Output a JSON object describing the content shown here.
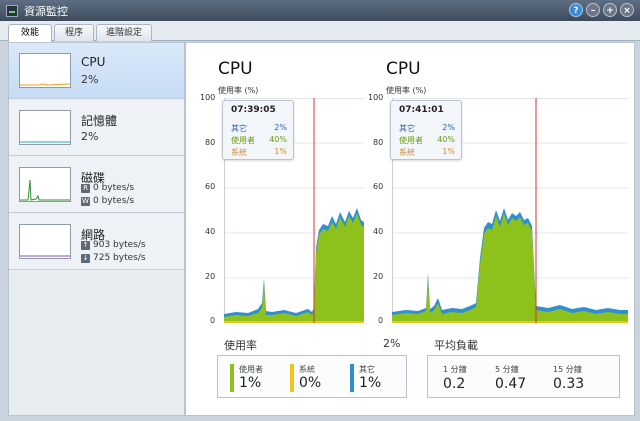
{
  "window": {
    "title": "資源監控"
  },
  "tabs": [
    {
      "label": "效能",
      "active": true
    },
    {
      "label": "程序",
      "active": false
    },
    {
      "label": "進階設定",
      "active": false
    }
  ],
  "sidebar": {
    "items": [
      {
        "title": "CPU",
        "value": "2%",
        "color": "#f0a020"
      },
      {
        "title": "記憶體",
        "value": "2%",
        "color": "#2aa0c8"
      },
      {
        "title": "磁碟",
        "read": "0 bytes/s",
        "write": "0 bytes/s",
        "read_icon": "R",
        "write_icon": "W",
        "color": "#2f8f2f"
      },
      {
        "title": "網路",
        "upload": "903 bytes/s",
        "download": "725 bytes/s",
        "color": "#8a4fc0"
      }
    ]
  },
  "main": {
    "charts": [
      {
        "title": "CPU",
        "ylabel": "使用率 (%)",
        "yticks": [
          "100",
          "80",
          "60",
          "40",
          "20",
          "0"
        ],
        "tooltip": {
          "time": "07:39:05",
          "rows": [
            {
              "label": "其它",
              "value": "2%",
              "kind": "other"
            },
            {
              "label": "使用者",
              "value": "40%",
              "kind": "user"
            },
            {
              "label": "系統",
              "value": "1%",
              "kind": "sys"
            }
          ]
        }
      },
      {
        "title": "CPU",
        "ylabel": "使用率 (%)",
        "yticks": [
          "100",
          "80",
          "60",
          "40",
          "20",
          "0"
        ],
        "tooltip": {
          "time": "07:41:01",
          "rows": [
            {
              "label": "其它",
              "value": "2%",
              "kind": "other"
            },
            {
              "label": "使用者",
              "value": "40%",
              "kind": "user"
            },
            {
              "label": "系統",
              "value": "1%",
              "kind": "sys"
            }
          ]
        }
      }
    ],
    "usage": {
      "label": "使用率",
      "total": "2%",
      "stats": [
        {
          "label": "使用者",
          "value": "1%",
          "color": "#8cc21b"
        },
        {
          "label": "系統",
          "value": "0%",
          "color": "#f2c418"
        },
        {
          "label": "其它",
          "value": "1%",
          "color": "#2f8fd0"
        }
      ]
    },
    "load": {
      "label": "平均負載",
      "items": [
        {
          "label": "1 分鐘",
          "value": "0.2"
        },
        {
          "label": "5 分鐘",
          "value": "0.47"
        },
        {
          "label": "15 分鐘",
          "value": "0.33"
        }
      ]
    }
  },
  "colors": {
    "user": "#8cc21b",
    "other": "#2f8fd0",
    "sys": "#f2c418",
    "marker": "#d9342b"
  }
}
